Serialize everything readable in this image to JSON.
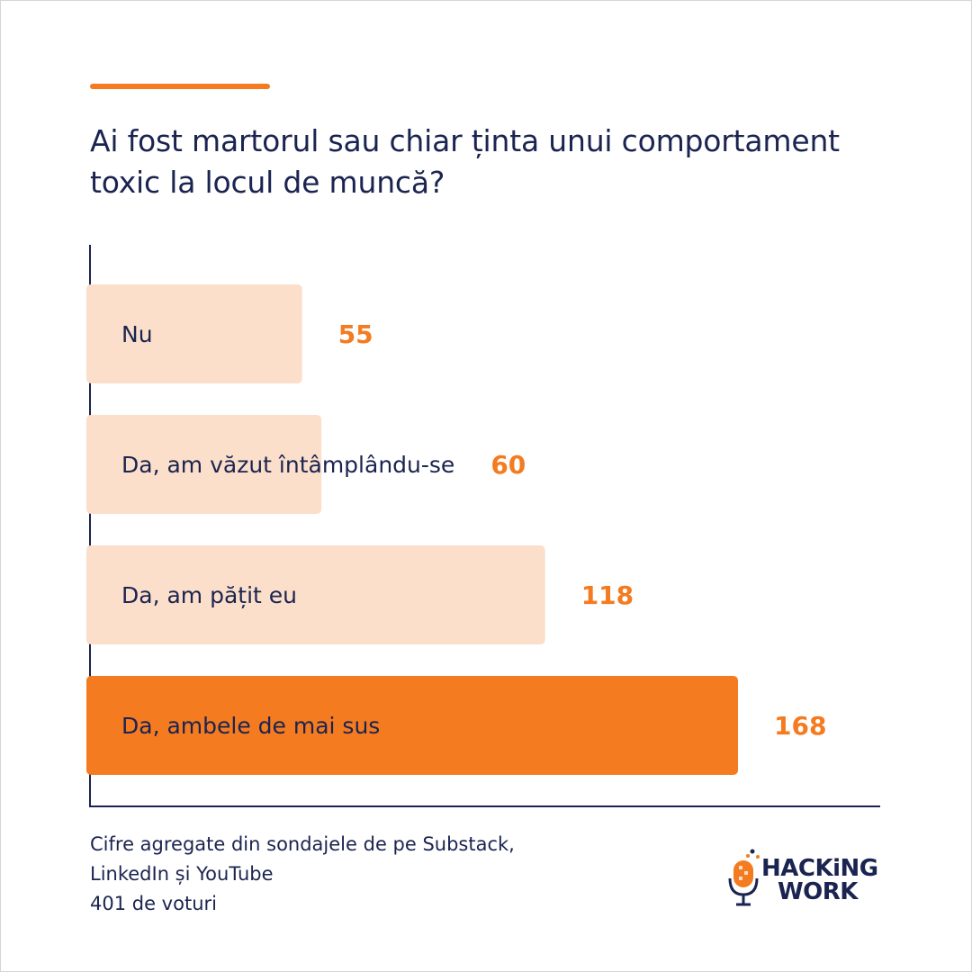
{
  "header": {
    "title": "Ai fost martorul sau chiar ținta unui comportament toxic la locul de muncă?"
  },
  "chart_data": {
    "type": "bar",
    "orientation": "horizontal",
    "categories": [
      "Nu",
      "Da, am văzut întâmplându-se",
      "Da, am pățit eu",
      "Da, ambele de mai sus"
    ],
    "values": [
      55,
      60,
      118,
      168
    ],
    "title": "Ai fost martorul sau chiar ținta unui comportament toxic la locul de muncă?",
    "xlabel": "",
    "ylabel": "",
    "grid": false,
    "colors": [
      "#fbdfca",
      "#fbdfca",
      "#fbdfca",
      "#f47b20"
    ]
  },
  "footnote": {
    "lines": [
      "Cifre agregate din sondajele de pe Substack,",
      "LinkedIn și YouTube",
      "401 de voturi"
    ]
  },
  "logo": {
    "line1": "HACKiNG",
    "line2": "WORK"
  },
  "colors": {
    "accent": "#f47b20",
    "bar_light": "#fbdfca",
    "text": "#1b2450"
  }
}
